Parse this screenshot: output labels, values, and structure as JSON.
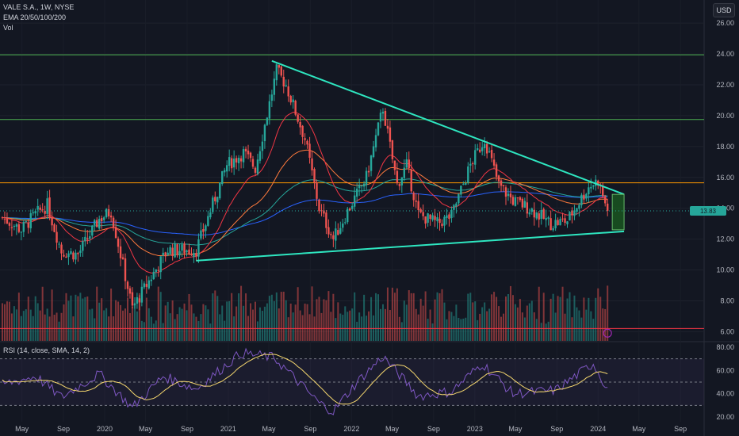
{
  "header": {
    "symbol_line": "VALE S.A., 1W, NYSE",
    "ema_line": "EMA 20/50/100/200",
    "vol_line": "Vol",
    "currency_button": "USD"
  },
  "rsi_panel": {
    "label": "RSI (14, close, SMA, 14, 2)"
  },
  "colors": {
    "background": "#131722",
    "bull": "#26a69a",
    "bear": "#ef5350",
    "trendline": "#2ee6c0",
    "resistance_green": "#4caf50",
    "resistance_orange": "#ff9800",
    "support_red": "#f23645",
    "ema20": "#f23645",
    "ema50": "#ff7a3d",
    "ema100": "#26a69a",
    "ema200": "#2962ff",
    "rsi_line": "#7e57c2",
    "rsi_ma": "#f5d76e",
    "target_box": "#1b5e20"
  },
  "chart_data": [
    {
      "type": "candlestick",
      "title": "VALE S.A., 1W, NYSE",
      "indicators": [
        "EMA 20",
        "EMA 50",
        "EMA 100",
        "EMA 200",
        "Vol"
      ],
      "ylim": [
        5.4,
        27.5
      ],
      "y_ticks": [
        "26.00",
        "24.00",
        "22.00",
        "20.00",
        "18.00",
        "16.00",
        "14.00",
        "12.00",
        "10.00",
        "8.00",
        "6.00"
      ],
      "y_tick_values": [
        26,
        24,
        22,
        20,
        18,
        16,
        14,
        12,
        10,
        8,
        6
      ],
      "x_ticks": [
        "May",
        "Sep",
        "2020",
        "May",
        "Sep",
        "2021",
        "May",
        "Sep",
        "2022",
        "May",
        "Sep",
        "2023",
        "May",
        "Sep",
        "2024",
        "May",
        "Sep"
      ],
      "x_tick_dates": [
        "2019-05",
        "2019-09",
        "2020-01",
        "2020-05",
        "2020-09",
        "2021-01",
        "2021-05",
        "2021-09",
        "2022-01",
        "2022-05",
        "2022-09",
        "2023-01",
        "2023-05",
        "2023-09",
        "2024-01",
        "2024-05",
        "2024-09"
      ],
      "x_range": [
        "2019-02-25",
        "2024-11-10"
      ],
      "price_anchors": [
        {
          "date": "2019-03-04",
          "price": 13.4
        },
        {
          "date": "2019-04-29",
          "price": 12.6
        },
        {
          "date": "2019-06-10",
          "price": 13.6
        },
        {
          "date": "2019-07-15",
          "price": 14.2
        },
        {
          "date": "2019-08-26",
          "price": 11.2
        },
        {
          "date": "2019-10-14",
          "price": 11.0
        },
        {
          "date": "2019-12-16",
          "price": 13.3
        },
        {
          "date": "2020-01-20",
          "price": 13.8
        },
        {
          "date": "2020-03-23",
          "price": 7.5
        },
        {
          "date": "2020-05-25",
          "price": 9.8
        },
        {
          "date": "2020-07-06",
          "price": 11.3
        },
        {
          "date": "2020-09-28",
          "price": 11.3
        },
        {
          "date": "2020-12-28",
          "price": 16.8
        },
        {
          "date": "2021-02-15",
          "price": 17.6
        },
        {
          "date": "2021-03-22",
          "price": 16.6
        },
        {
          "date": "2021-05-24",
          "price": 22.9
        },
        {
          "date": "2021-06-21",
          "price": 22.0
        },
        {
          "date": "2021-08-16",
          "price": 18.5
        },
        {
          "date": "2021-09-27",
          "price": 14.0
        },
        {
          "date": "2021-11-08",
          "price": 12.0
        },
        {
          "date": "2021-12-20",
          "price": 13.8
        },
        {
          "date": "2022-02-14",
          "price": 16.0
        },
        {
          "date": "2022-04-04",
          "price": 20.5
        },
        {
          "date": "2022-05-16",
          "price": 15.5
        },
        {
          "date": "2022-06-13",
          "price": 16.8
        },
        {
          "date": "2022-07-18",
          "price": 13.6
        },
        {
          "date": "2022-09-12",
          "price": 13.0
        },
        {
          "date": "2022-10-24",
          "price": 13.5
        },
        {
          "date": "2022-12-19",
          "price": 16.8
        },
        {
          "date": "2023-01-30",
          "price": 18.5
        },
        {
          "date": "2023-03-13",
          "price": 15.5
        },
        {
          "date": "2023-04-24",
          "price": 14.5
        },
        {
          "date": "2023-06-12",
          "price": 14.0
        },
        {
          "date": "2023-08-14",
          "price": 13.0
        },
        {
          "date": "2023-10-02",
          "price": 13.2
        },
        {
          "date": "2023-12-04",
          "price": 15.4
        },
        {
          "date": "2024-01-01",
          "price": 15.8
        },
        {
          "date": "2024-01-29",
          "price": 13.8
        }
      ],
      "current_price": 13.83,
      "lines": [
        {
          "kind": "resistance",
          "color": "#4caf50",
          "price": 23.95
        },
        {
          "kind": "resistance",
          "color": "#4caf50",
          "price": 19.75
        },
        {
          "kind": "resistance",
          "color": "#ff9800",
          "price": 15.65
        },
        {
          "kind": "support",
          "color": "#f23645",
          "price": 6.2
        },
        {
          "kind": "trendline",
          "color": "#2ee6c0",
          "from": {
            "date": "2021-05-10",
            "price": 23.55
          },
          "to": {
            "date": "2024-03-18",
            "price": 14.9
          }
        },
        {
          "kind": "trendline",
          "color": "#2ee6c0",
          "from": {
            "date": "2020-09-28",
            "price": 10.6
          },
          "to": {
            "date": "2024-03-18",
            "price": 12.5
          }
        }
      ],
      "target_box": {
        "from": "2024-02-12",
        "to": "2024-03-18",
        "top": 14.9,
        "bottom": 12.6
      }
    },
    {
      "type": "line",
      "title": "RSI (14, close, SMA, 14, 2)",
      "ylim": [
        16,
        84
      ],
      "y_ticks": [
        "80.00",
        "60.00",
        "40.00",
        "20.00"
      ],
      "y_tick_values": [
        80,
        60,
        40,
        20
      ],
      "band_levels": [
        70,
        50,
        30
      ],
      "rsi_anchors": [
        {
          "date": "2019-03-04",
          "value": 48
        },
        {
          "date": "2019-06-10",
          "value": 55
        },
        {
          "date": "2019-08-26",
          "value": 37
        },
        {
          "date": "2019-12-16",
          "value": 57
        },
        {
          "date": "2020-03-23",
          "value": 28
        },
        {
          "date": "2020-06-22",
          "value": 55
        },
        {
          "date": "2020-09-28",
          "value": 44
        },
        {
          "date": "2021-02-08",
          "value": 75
        },
        {
          "date": "2021-05-17",
          "value": 71
        },
        {
          "date": "2021-09-27",
          "value": 32
        },
        {
          "date": "2021-11-08",
          "value": 25
        },
        {
          "date": "2022-01-17",
          "value": 50
        },
        {
          "date": "2022-04-04",
          "value": 72
        },
        {
          "date": "2022-07-18",
          "value": 38
        },
        {
          "date": "2022-10-24",
          "value": 42
        },
        {
          "date": "2023-01-23",
          "value": 66
        },
        {
          "date": "2023-04-24",
          "value": 40
        },
        {
          "date": "2023-08-28",
          "value": 43
        },
        {
          "date": "2023-12-18",
          "value": 66
        },
        {
          "date": "2024-01-29",
          "value": 44
        }
      ]
    }
  ]
}
